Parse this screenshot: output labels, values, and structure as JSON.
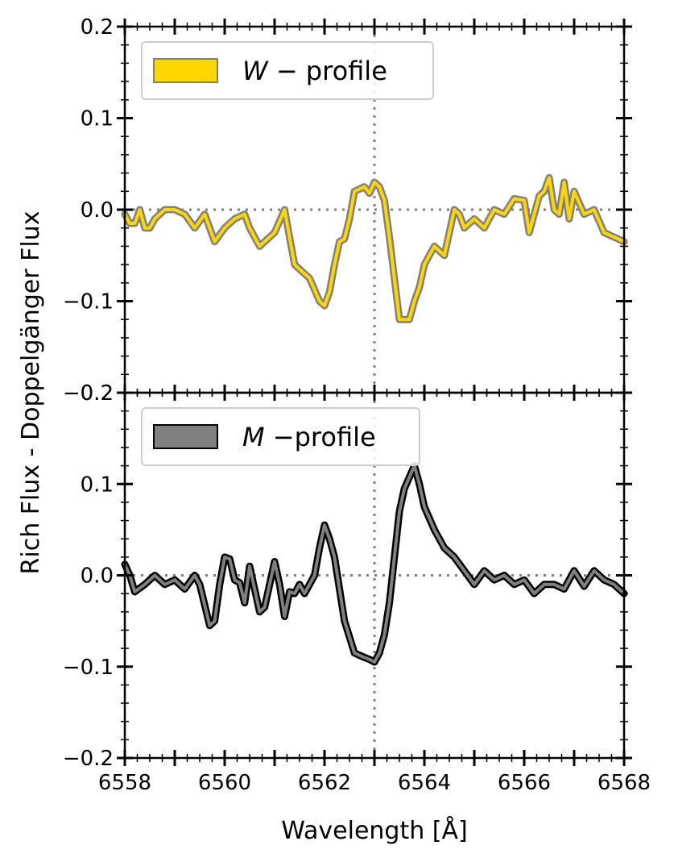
{
  "chart_data": [
    {
      "type": "line",
      "panel": "top",
      "legend_label": "W− profile",
      "legend_math": "W",
      "legend_rest": "−  profile",
      "legend_placement": "top-left",
      "line_color": "#FFD700",
      "outline_color": "#808080",
      "xlim": [
        6558,
        6568
      ],
      "ylim": [
        -0.2,
        0.2
      ],
      "yticks": [
        "−0.2",
        "−0.1",
        "0.0",
        "0.1",
        "0.2"
      ],
      "x": [
        6558.0,
        6558.1,
        6558.2,
        6558.3,
        6558.4,
        6558.5,
        6558.6,
        6558.7,
        6558.8,
        6559.0,
        6559.2,
        6559.4,
        6559.6,
        6559.8,
        6560.0,
        6560.2,
        6560.4,
        6560.5,
        6560.7,
        6561.0,
        6561.2,
        6561.4,
        6561.5,
        6561.7,
        6561.9,
        6562.0,
        6562.1,
        6562.2,
        6562.3,
        6562.4,
        6562.5,
        6562.6,
        6562.8,
        6562.9,
        6563.0,
        6563.1,
        6563.2,
        6563.3,
        6563.5,
        6563.7,
        6563.8,
        6563.9,
        6564.0,
        6564.2,
        6564.4,
        6564.6,
        6564.7,
        6564.8,
        6565.0,
        6565.2,
        6565.4,
        6565.6,
        6565.8,
        6566.0,
        6566.1,
        6566.3,
        6566.4,
        6566.5,
        6566.6,
        6566.7,
        6566.8,
        6566.9,
        6567.0,
        6567.2,
        6567.4,
        6567.6,
        6567.8,
        6568.0
      ],
      "y": [
        -0.005,
        -0.015,
        -0.015,
        0.0,
        -0.02,
        -0.02,
        -0.01,
        -0.005,
        0.0,
        0.0,
        -0.005,
        -0.02,
        -0.005,
        -0.035,
        -0.02,
        -0.01,
        -0.005,
        -0.02,
        -0.04,
        -0.025,
        0.0,
        -0.06,
        -0.065,
        -0.075,
        -0.1,
        -0.105,
        -0.09,
        -0.06,
        -0.035,
        -0.032,
        -0.01,
        0.02,
        0.025,
        0.018,
        0.03,
        0.025,
        0.01,
        -0.03,
        -0.12,
        -0.12,
        -0.1,
        -0.085,
        -0.06,
        -0.04,
        -0.05,
        0.0,
        -0.005,
        -0.02,
        -0.01,
        -0.02,
        0.0,
        -0.005,
        0.012,
        0.01,
        -0.025,
        0.015,
        0.02,
        0.035,
        0.0,
        -0.005,
        0.03,
        -0.01,
        0.02,
        -0.005,
        0.0,
        -0.025,
        -0.03,
        -0.035
      ]
    },
    {
      "type": "line",
      "panel": "bottom",
      "legend_label": "M−profile",
      "legend_math": "M",
      "legend_rest": "−profile",
      "legend_placement": "top-left",
      "line_color": "#808080",
      "outline_color": "#000000",
      "xlim": [
        6558,
        6568
      ],
      "ylim": [
        -0.2,
        0.2
      ],
      "yticks": [
        "−0.2",
        "−0.1",
        "0.0",
        "0.1",
        "0.2"
      ],
      "xticks": [
        "6558",
        "6560",
        "6562",
        "6564",
        "6566",
        "6568"
      ],
      "xlabel": "Wavelength [Å]",
      "x": [
        6558.0,
        6558.1,
        6558.2,
        6558.4,
        6558.6,
        6558.8,
        6559.0,
        6559.2,
        6559.4,
        6559.5,
        6559.7,
        6559.8,
        6559.9,
        6560.0,
        6560.1,
        6560.2,
        6560.3,
        6560.4,
        6560.5,
        6560.7,
        6560.8,
        6561.0,
        6561.1,
        6561.2,
        6561.3,
        6561.4,
        6561.5,
        6561.6,
        6561.8,
        6561.9,
        6562.0,
        6562.1,
        6562.2,
        6562.4,
        6562.6,
        6562.8,
        6562.9,
        6563.0,
        6563.1,
        6563.2,
        6563.3,
        6563.4,
        6563.5,
        6563.6,
        6563.8,
        6563.9,
        6564.0,
        6564.2,
        6564.4,
        6564.6,
        6564.8,
        6565.0,
        6565.2,
        6565.4,
        6565.6,
        6565.8,
        6566.0,
        6566.2,
        6566.4,
        6566.6,
        6566.8,
        6567.0,
        6567.2,
        6567.4,
        6567.6,
        6567.8,
        6568.0
      ],
      "y": [
        0.012,
        0.0,
        -0.018,
        -0.01,
        0.0,
        -0.01,
        -0.005,
        -0.015,
        0.0,
        -0.01,
        -0.055,
        -0.05,
        -0.01,
        0.02,
        0.018,
        -0.005,
        -0.008,
        -0.03,
        0.01,
        -0.04,
        -0.035,
        0.015,
        -0.01,
        -0.045,
        -0.018,
        -0.02,
        -0.01,
        -0.02,
        0.0,
        0.03,
        0.055,
        0.04,
        0.02,
        -0.05,
        -0.085,
        -0.09,
        -0.092,
        -0.095,
        -0.085,
        -0.065,
        -0.03,
        0.02,
        0.07,
        0.095,
        0.12,
        0.1,
        0.075,
        0.05,
        0.03,
        0.02,
        0.005,
        -0.01,
        0.005,
        -0.005,
        0.0,
        -0.01,
        -0.005,
        -0.02,
        -0.01,
        -0.01,
        -0.015,
        0.005,
        -0.012,
        0.005,
        -0.005,
        -0.01,
        -0.02
      ]
    }
  ],
  "shared": {
    "ylabel": "Rich Flux - Doppelgänger Flux",
    "reference_x": 6563,
    "reference_y": 0.0,
    "reference_color": "#808080"
  }
}
